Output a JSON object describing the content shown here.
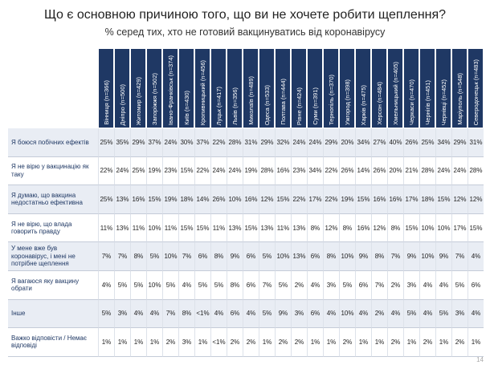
{
  "title": "Що є основною причиною того, що ви не хочете робити щеплення?",
  "subtitle": "% серед тих, хто не готовий вакцинуватись від коронавірусу",
  "table": {
    "columns": [
      "Вінниця (n=366)",
      "Дніпро (n=500)",
      "Житомир (n=429)",
      "Запоріжжя (n=502)",
      "Івано-Франківськ (n=374)",
      "Київ (n=430)",
      "Кропивницький (n=456)",
      "Луцьк (n=417)",
      "Львів (n=356)",
      "Миколаїв (n=489)",
      "Одеса (n=533)",
      "Полтава (n=444)",
      "Рівне (n=424)",
      "Суми (n=391)",
      "Тернопіль (n=370)",
      "Ужгород (n=398)",
      "Харків (n=475)",
      "Херсон (n=484)",
      "Хмельницький (n=405)",
      "Черкаси (n=470)",
      "Чернігів (n=451)",
      "Чернівці (n=452)",
      "Маріуполь (n=548)",
      "Северодонецьк (n=483)"
    ],
    "rows": [
      {
        "label": "Я боюся побічних ефектів",
        "cells": [
          "25%",
          "35%",
          "29%",
          "37%",
          "24%",
          "30%",
          "37%",
          "22%",
          "28%",
          "31%",
          "29%",
          "32%",
          "24%",
          "24%",
          "29%",
          "20%",
          "34%",
          "27%",
          "40%",
          "26%",
          "25%",
          "34%",
          "29%",
          "31%"
        ]
      },
      {
        "label": "Я не вірю у вакцинацію як таку",
        "cells": [
          "22%",
          "24%",
          "25%",
          "19%",
          "23%",
          "15%",
          "22%",
          "24%",
          "24%",
          "19%",
          "28%",
          "16%",
          "23%",
          "34%",
          "22%",
          "26%",
          "14%",
          "26%",
          "20%",
          "21%",
          "28%",
          "24%",
          "24%",
          "28%"
        ]
      },
      {
        "label": "Я думаю, що вакцина недостатньо ефективна",
        "cells": [
          "25%",
          "13%",
          "16%",
          "15%",
          "19%",
          "18%",
          "14%",
          "26%",
          "10%",
          "16%",
          "12%",
          "15%",
          "22%",
          "17%",
          "22%",
          "19%",
          "15%",
          "16%",
          "16%",
          "17%",
          "18%",
          "15%",
          "12%",
          "12%"
        ]
      },
      {
        "label": "Я не вірю, що влада говорить правду",
        "cells": [
          "11%",
          "13%",
          "11%",
          "10%",
          "11%",
          "15%",
          "15%",
          "11%",
          "13%",
          "15%",
          "13%",
          "11%",
          "13%",
          "8%",
          "12%",
          "8%",
          "16%",
          "12%",
          "8%",
          "15%",
          "10%",
          "10%",
          "17%",
          "15%"
        ]
      },
      {
        "label": "У мене вже був коронавірус, і мені не потрібне щеплення",
        "cells": [
          "7%",
          "7%",
          "8%",
          "5%",
          "10%",
          "7%",
          "6%",
          "8%",
          "9%",
          "6%",
          "5%",
          "10%",
          "13%",
          "6%",
          "8%",
          "10%",
          "9%",
          "8%",
          "7%",
          "9%",
          "10%",
          "9%",
          "7%",
          "4%"
        ]
      },
      {
        "label": "Я вагаюся яку вакцину обрати",
        "cells": [
          "4%",
          "5%",
          "5%",
          "10%",
          "5%",
          "4%",
          "5%",
          "5%",
          "8%",
          "6%",
          "7%",
          "5%",
          "2%",
          "4%",
          "3%",
          "5%",
          "6%",
          "7%",
          "2%",
          "3%",
          "4%",
          "4%",
          "5%",
          "6%"
        ]
      },
      {
        "label": "Інше",
        "cells": [
          "5%",
          "3%",
          "4%",
          "4%",
          "7%",
          "8%",
          "<1%",
          "4%",
          "6%",
          "4%",
          "5%",
          "9%",
          "3%",
          "6%",
          "4%",
          "10%",
          "4%",
          "2%",
          "4%",
          "5%",
          "4%",
          "5%",
          "3%",
          "4%"
        ]
      },
      {
        "label": "Важко відповісти / Немає відповіді",
        "cells": [
          "1%",
          "1%",
          "1%",
          "1%",
          "2%",
          "3%",
          "1%",
          "<1%",
          "2%",
          "2%",
          "1%",
          "2%",
          "2%",
          "1%",
          "1%",
          "2%",
          "1%",
          "1%",
          "2%",
          "1%",
          "2%",
          "1%",
          "2%",
          "1%"
        ]
      }
    ]
  },
  "page_number": "14"
}
